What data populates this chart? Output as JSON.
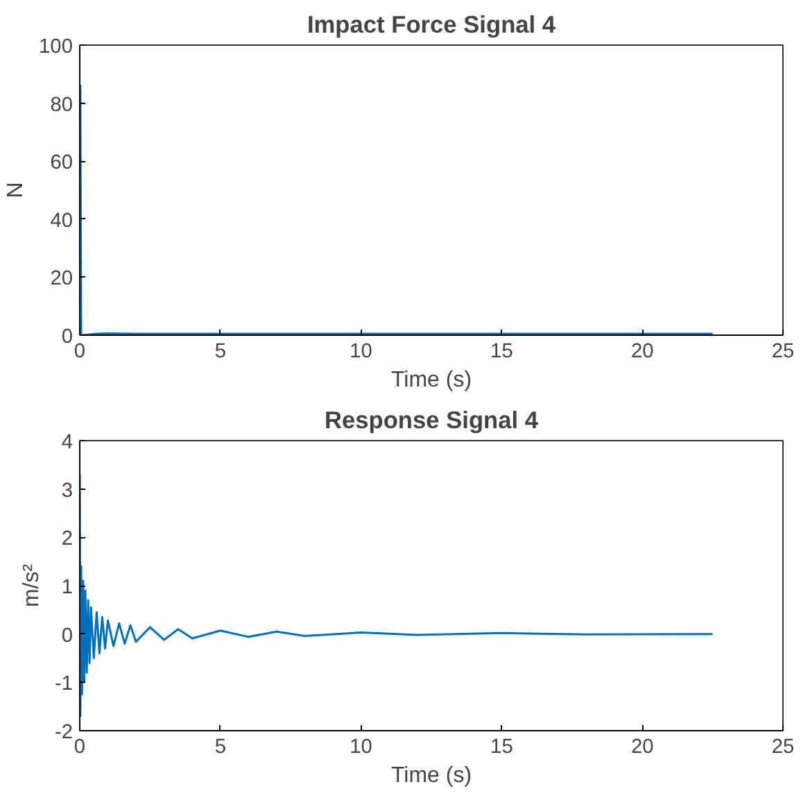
{
  "chart_data": [
    {
      "type": "line",
      "title": "Impact Force Signal 4",
      "xlabel": "Time (s)",
      "ylabel": "N",
      "xlim": [
        0,
        25
      ],
      "xticks": [
        0,
        5,
        10,
        15,
        20,
        25
      ],
      "ylim": [
        0,
        100
      ],
      "yticks": [
        0,
        20,
        40,
        60,
        80,
        100
      ],
      "grid": false,
      "series": [
        {
          "color": "#0072bd",
          "x": [
            0,
            0.02,
            0.05,
            0.1,
            0.3,
            0.6,
            1,
            2,
            5,
            10,
            15,
            20,
            22.5
          ],
          "values": [
            0,
            86,
            0,
            0,
            0.2,
            0.5,
            0.6,
            0.5,
            0.5,
            0.5,
            0.5,
            0.5,
            0.5
          ]
        }
      ]
    },
    {
      "type": "line",
      "title": "Response Signal 4",
      "xlabel": "Time (s)",
      "ylabel": "m/s²",
      "xlim": [
        0,
        25
      ],
      "xticks": [
        0,
        5,
        10,
        15,
        20,
        25
      ],
      "ylim": [
        -2,
        4
      ],
      "yticks": [
        -2,
        -1,
        0,
        1,
        2,
        3,
        4
      ],
      "grid": false,
      "series": [
        {
          "color": "#0072bd",
          "x": [
            0,
            0.02,
            0.05,
            0.08,
            0.12,
            0.16,
            0.2,
            0.25,
            0.3,
            0.35,
            0.4,
            0.5,
            0.6,
            0.7,
            0.8,
            0.9,
            1.0,
            1.2,
            1.4,
            1.6,
            1.8,
            2.0,
            2.5,
            3,
            3.5,
            4,
            5,
            6,
            7,
            8,
            10,
            12,
            15,
            18,
            22.5
          ],
          "values": [
            3.3,
            -1.7,
            1.4,
            -1.25,
            1.1,
            -1.0,
            0.9,
            -0.8,
            0.7,
            -0.6,
            0.55,
            -0.5,
            0.45,
            -0.4,
            0.35,
            -0.3,
            0.28,
            -0.25,
            0.22,
            -0.2,
            0.18,
            -0.16,
            0.14,
            -0.12,
            0.1,
            -0.09,
            0.07,
            -0.06,
            0.05,
            -0.04,
            0.03,
            -0.02,
            0.02,
            -0.01,
            0
          ]
        }
      ]
    }
  ]
}
